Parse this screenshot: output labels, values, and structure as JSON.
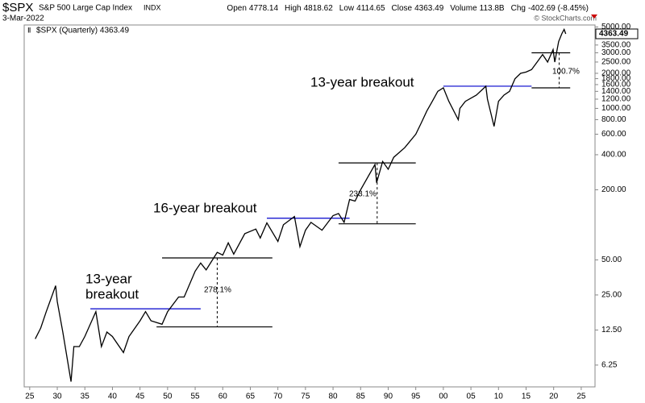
{
  "header": {
    "symbol": "$SPX",
    "name": "S&P 500 Large Cap Index",
    "exchange": "INDX",
    "date": "3-Mar-2022",
    "quote": [
      {
        "label": "Open",
        "value": "4778.14"
      },
      {
        "label": "High",
        "value": "4818.62"
      },
      {
        "label": "Low",
        "value": "4114.65"
      },
      {
        "label": "Close",
        "value": "4363.49"
      },
      {
        "label": "Volume",
        "value": "113.8B"
      },
      {
        "label": "Chg",
        "value": "-402.69 (-8.45%)"
      }
    ],
    "credit": "© StockCharts.com"
  },
  "chart_data": {
    "type": "line",
    "log_scale": true,
    "grid": false,
    "last_price": 4363.49,
    "series": [
      {
        "name": "$SPX (Quarterly) 4363.49",
        "color": "#000000",
        "x": [
          1926,
          1927,
          1928,
          1929.7,
          1930,
          1931,
          1932.5,
          1933,
          1934,
          1935,
          1937,
          1938,
          1939,
          1940,
          1942,
          1943,
          1945,
          1946,
          1947,
          1949,
          1950,
          1952,
          1953,
          1955,
          1956,
          1957,
          1959,
          1960,
          1961,
          1962,
          1964,
          1966,
          1966.8,
          1968,
          1970,
          1971,
          1973,
          1974,
          1975,
          1976,
          1978,
          1980,
          1981,
          1982,
          1983,
          1984,
          1985,
          1987.6,
          1987.9,
          1989,
          1990,
          1991,
          1993,
          1995,
          1996,
          1997,
          1998,
          1999,
          2000,
          2001,
          2002.7,
          2003,
          2004,
          2006,
          2007.7,
          2008,
          2009.2,
          2010,
          2011,
          2012,
          2013,
          2014,
          2015,
          2016,
          2017,
          2018,
          2018.9,
          2019.9,
          2020.2,
          2020.9,
          2021.5,
          2021.9,
          2022.2
        ],
        "values": [
          10.5,
          13,
          18,
          30,
          22,
          12,
          4.5,
          9,
          9,
          11,
          18,
          9,
          12,
          11,
          8,
          11,
          15,
          18,
          15,
          14,
          18,
          24,
          24,
          40,
          47,
          41,
          58,
          55,
          70,
          56,
          84,
          92,
          77,
          104,
          72,
          100,
          118,
          65,
          90,
          105,
          90,
          120,
          125,
          105,
          165,
          160,
          200,
          330,
          230,
          350,
          300,
          380,
          460,
          600,
          750,
          950,
          1150,
          1400,
          1500,
          1150,
          800,
          1000,
          1150,
          1300,
          1550,
          1200,
          700,
          1150,
          1300,
          1400,
          1800,
          2000,
          2050,
          2150,
          2500,
          2900,
          2500,
          3200,
          2500,
          3750,
          4400,
          4766,
          4363
        ]
      }
    ],
    "xlim": [
      1924,
      2027.5
    ],
    "ylim": [
      4.06,
      5200
    ],
    "xticks": [
      {
        "value": 1925,
        "label": "25"
      },
      {
        "value": 1930,
        "label": "30"
      },
      {
        "value": 1935,
        "label": "35"
      },
      {
        "value": 1940,
        "label": "40"
      },
      {
        "value": 1945,
        "label": "45"
      },
      {
        "value": 1950,
        "label": "50"
      },
      {
        "value": 1955,
        "label": "55"
      },
      {
        "value": 1960,
        "label": "60"
      },
      {
        "value": 1965,
        "label": "65"
      },
      {
        "value": 1970,
        "label": "70"
      },
      {
        "value": 1975,
        "label": "75"
      },
      {
        "value": 1980,
        "label": "80"
      },
      {
        "value": 1985,
        "label": "85"
      },
      {
        "value": 1990,
        "label": "90"
      },
      {
        "value": 1995,
        "label": "95"
      },
      {
        "value": 2000,
        "label": "00"
      },
      {
        "value": 2005,
        "label": "05"
      },
      {
        "value": 2010,
        "label": "10"
      },
      {
        "value": 2015,
        "label": "15"
      },
      {
        "value": 2020,
        "label": "20"
      },
      {
        "value": 2025,
        "label": "25"
      }
    ],
    "yticks": [
      6.25,
      {
        "value": 12.5,
        "label": "12.50"
      },
      {
        "value": 25,
        "label": "25.00"
      },
      {
        "value": 50,
        "label": "50.00"
      },
      {
        "value": 200,
        "label": "200.00"
      },
      {
        "value": 400,
        "label": "400.00"
      },
      {
        "value": 600,
        "label": "600.00"
      },
      {
        "value": 800,
        "label": "800.00"
      },
      {
        "value": 1000,
        "label": "1000.00"
      },
      {
        "value": 1200,
        "label": "1200.00"
      },
      {
        "value": 1400,
        "label": "1400.00"
      },
      {
        "value": 1600,
        "label": "1600.00"
      },
      {
        "value": 1800,
        "label": "1800.00"
      },
      {
        "value": 2000,
        "label": "2000.00"
      },
      {
        "value": 2500,
        "label": "2500.00"
      },
      {
        "value": 3000,
        "label": "3000.00"
      },
      {
        "value": 3500,
        "label": "3500.00"
      },
      {
        "value": 5000,
        "label": "5000.00"
      }
    ],
    "reference_lines": [
      {
        "y": 19,
        "x": [
          1936,
          1956
        ],
        "color": "#0000cc"
      },
      {
        "y": 52,
        "x": [
          1949,
          1969
        ],
        "color": "#000000"
      },
      {
        "y": 13.3,
        "x": [
          1948,
          1969
        ],
        "color": "#000000"
      },
      {
        "y": 114,
        "x": [
          1968,
          1983
        ],
        "color": "#0000cc"
      },
      {
        "y": 340,
        "x": [
          1981,
          1995
        ],
        "color": "#000000"
      },
      {
        "y": 102,
        "x": [
          1981,
          1995
        ],
        "color": "#000000"
      },
      {
        "y": 1550,
        "x": [
          2000,
          2016
        ],
        "color": "#0000cc"
      },
      {
        "y": 3000,
        "x": [
          2016,
          2023
        ],
        "color": "#000000"
      },
      {
        "y": 1500,
        "x": [
          2016,
          2023
        ],
        "color": "#000000"
      }
    ],
    "annotations": [
      "13-year",
      "breakout",
      "16-year breakout",
      "13-year breakout",
      "278.1%",
      "233.1%",
      "100.7%"
    ]
  }
}
